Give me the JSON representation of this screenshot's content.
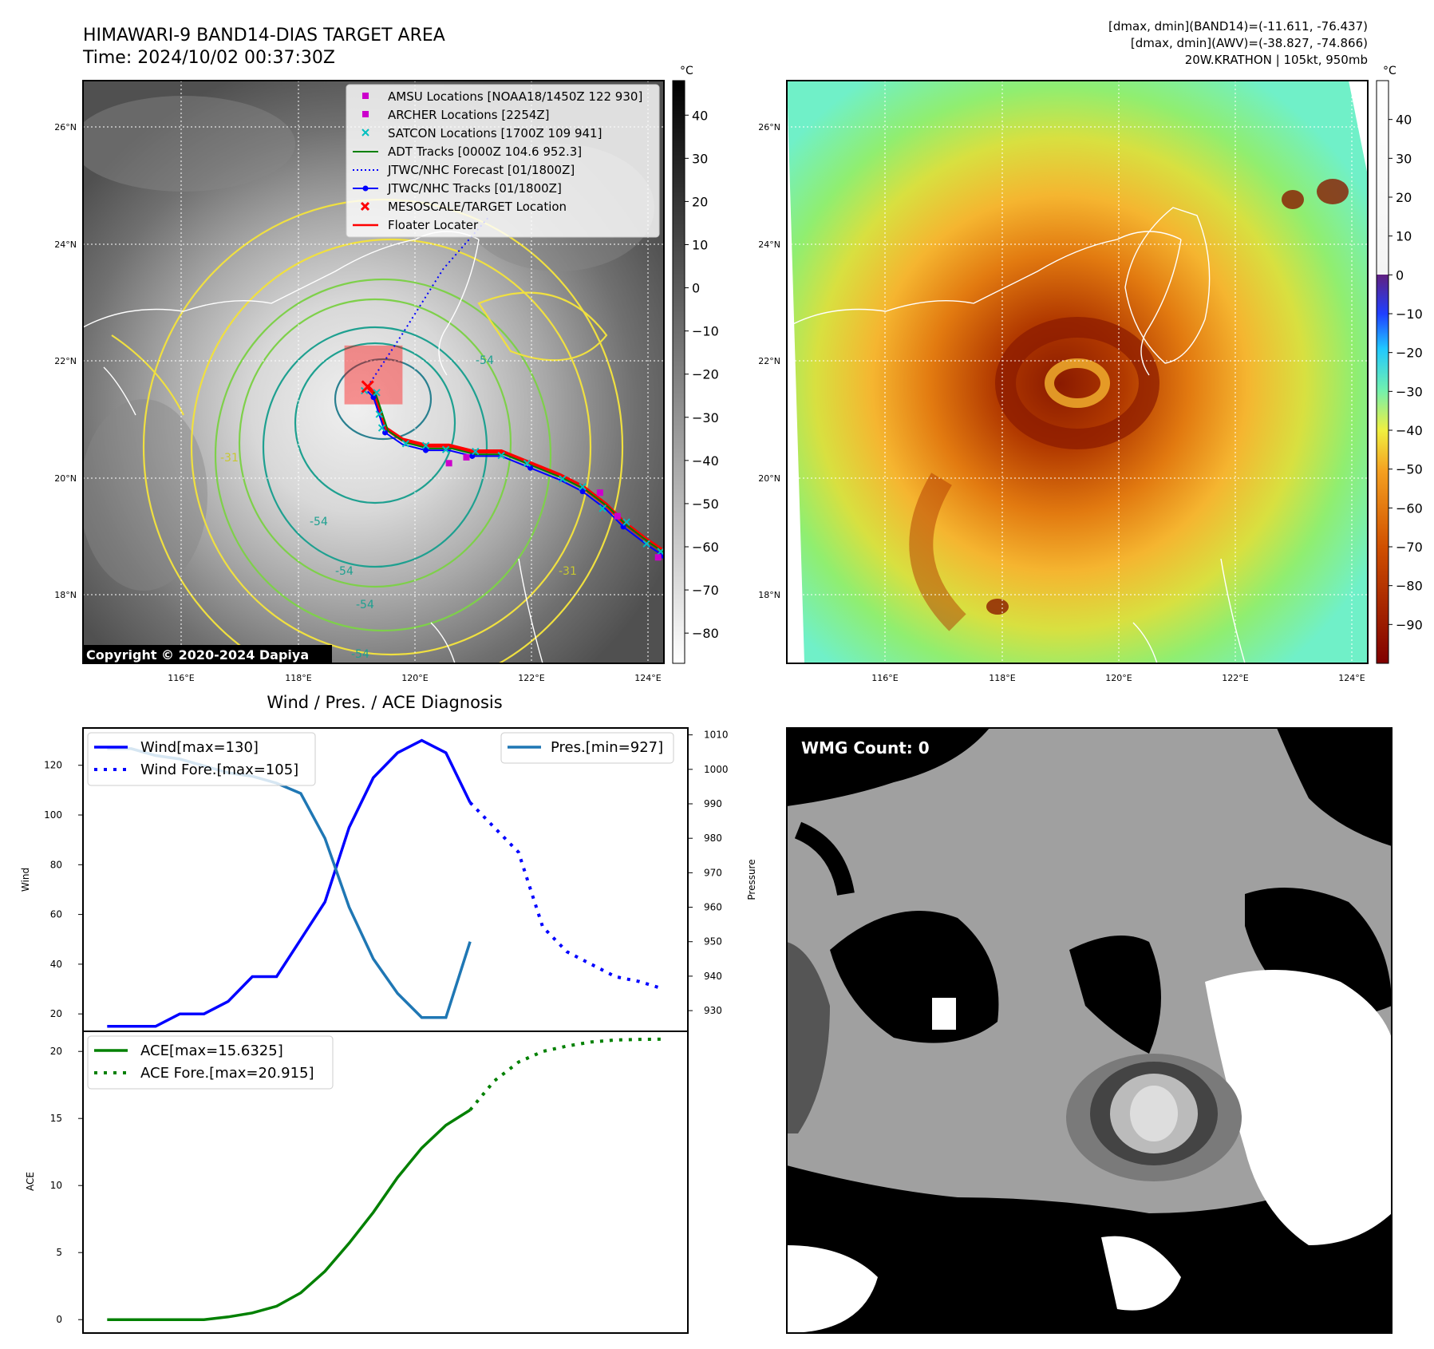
{
  "header": {
    "title_line1": "HIMAWARI-9 BAND14-DIAS TARGET AREA",
    "title_line2": "Time: 2024/10/02 00:37:30Z",
    "stats_line1": "[dmax, dmin](BAND14)=(-11.611, -76.437)",
    "stats_line2": "[dmax, dmin](AWV)=(-38.827, -74.866)",
    "stats_line3": "20W.KRATHON | 105kt, 950mb"
  },
  "copyright": "Copyright © 2020-2024 Dapiya",
  "map": {
    "lat_labels": [
      "26°N",
      "24°N",
      "22°N",
      "20°N",
      "18°N"
    ],
    "lat_values": [
      26,
      24,
      22,
      20,
      18
    ],
    "lon_labels": [
      "116°E",
      "118°E",
      "120°E",
      "122°E",
      "124°E"
    ],
    "lon_values": [
      116,
      118,
      120,
      122,
      124
    ],
    "lon_range": [
      114.3,
      124.3
    ],
    "lat_range": [
      16.9,
      26.8
    ],
    "contour_labels": [
      "-54",
      "-54",
      "-54",
      "-54",
      "-31",
      "-31",
      "-54"
    ],
    "legend": [
      {
        "label": "AMSU Locations [NOAA18/1450Z 122 930]",
        "marker": "square",
        "color": "#cc00cc"
      },
      {
        "label": "ARCHER Locations [2254Z]",
        "marker": "square",
        "color": "#cc00cc"
      },
      {
        "label": "SATCON Locations [1700Z 109 941]",
        "marker": "x",
        "color": "#00bfbf"
      },
      {
        "label": "ADT Tracks [0000Z 104.6 952.3]",
        "marker": "line",
        "color": "#008000"
      },
      {
        "label": "JTWC/NHC Forecast [01/1800Z]",
        "marker": "dotted",
        "color": "#0000ff"
      },
      {
        "label": "JTWC/NHC Tracks [01/1800Z]",
        "marker": "line-dot",
        "color": "#0000ff"
      },
      {
        "label": "MESOSCALE/TARGET Location",
        "marker": "x",
        "color": "#ff0000"
      },
      {
        "label": "Floater Locater",
        "marker": "line",
        "color": "#ff0000"
      }
    ],
    "track_points": [
      [
        124.3,
        18.8
      ],
      [
        124.0,
        19.0
      ],
      [
        123.6,
        19.3
      ],
      [
        123.3,
        19.6
      ],
      [
        122.9,
        19.9
      ],
      [
        122.5,
        20.1
      ],
      [
        122.0,
        20.3
      ],
      [
        121.5,
        20.5
      ],
      [
        121.0,
        20.5
      ],
      [
        120.6,
        20.6
      ],
      [
        120.2,
        20.6
      ],
      [
        119.8,
        20.7
      ],
      [
        119.5,
        20.9
      ],
      [
        119.4,
        21.2
      ],
      [
        119.3,
        21.5
      ],
      [
        119.2,
        21.6
      ]
    ],
    "forecast_points": [
      [
        119.2,
        21.6
      ],
      [
        119.8,
        22.5
      ],
      [
        120.5,
        23.6
      ],
      [
        121.3,
        24.5
      ]
    ],
    "target_box": {
      "lon": [
        118.8,
        119.8
      ],
      "lat": [
        21.3,
        22.3
      ]
    },
    "target_center": [
      119.2,
      21.6
    ]
  },
  "colorbar_band14": {
    "unit": "°C",
    "ticks": [
      "40",
      "30",
      "20",
      "10",
      "0",
      "−10",
      "−20",
      "−30",
      "−40",
      "−50",
      "−60",
      "−70",
      "−80"
    ],
    "tick_values": [
      40,
      30,
      20,
      10,
      0,
      -10,
      -20,
      -30,
      -40,
      -50,
      -60,
      -70,
      -80
    ],
    "range": [
      -87,
      48
    ]
  },
  "colorbar_awv": {
    "unit": "°C",
    "ticks": [
      "40",
      "30",
      "20",
      "10",
      "0",
      "−10",
      "−20",
      "−30",
      "−40",
      "−50",
      "−60",
      "−70",
      "−80",
      "−90"
    ],
    "tick_values": [
      40,
      30,
      20,
      10,
      0,
      -10,
      -20,
      -30,
      -40,
      -50,
      -60,
      -70,
      -80,
      -90
    ],
    "range": [
      -100,
      50
    ]
  },
  "chart_data": [
    {
      "type": "line",
      "title": "Wind / Pres. / ACE Diagnosis",
      "ylabel": "Wind",
      "y2label": "Pressure",
      "ylim": [
        13,
        135
      ],
      "y2lim": [
        924,
        1012
      ],
      "yticks": [
        20,
        40,
        60,
        80,
        100,
        120
      ],
      "y2ticks": [
        930,
        940,
        950,
        960,
        970,
        980,
        990,
        1000,
        1010
      ],
      "xlim": [
        -1,
        24
      ],
      "series": [
        {
          "name": "Wind[max=130]",
          "axis": "left",
          "style": "solid",
          "color": "#0000ff",
          "x": [
            0,
            1,
            2,
            3,
            4,
            5,
            6,
            7,
            8,
            9,
            10,
            11,
            12,
            13,
            14,
            15
          ],
          "values": [
            15,
            15,
            15,
            20,
            20,
            25,
            35,
            35,
            50,
            65,
            95,
            115,
            125,
            130,
            125,
            105
          ]
        },
        {
          "name": "Wind Fore.[max=105]",
          "axis": "left",
          "style": "dotted",
          "color": "#0000ff",
          "x": [
            15,
            16,
            17,
            17.5,
            18,
            19,
            20,
            21,
            22,
            23
          ],
          "values": [
            105,
            95,
            85,
            70,
            55,
            45,
            40,
            35,
            33,
            30
          ]
        },
        {
          "name": "Pres.[min=927]",
          "axis": "right",
          "style": "solid",
          "color": "#1f77b4",
          "x": [
            0,
            1,
            2,
            3,
            4,
            5,
            6,
            7,
            8,
            9,
            10,
            11,
            12,
            13,
            14,
            15
          ],
          "values": [
            1006,
            1006,
            1004,
            1003,
            1001,
            999,
            998,
            996,
            993,
            980,
            960,
            945,
            935,
            928,
            928,
            950
          ]
        }
      ]
    },
    {
      "type": "line",
      "ylabel": "ACE",
      "ylim": [
        -1,
        21.5
      ],
      "yticks": [
        0,
        5,
        10,
        15,
        20
      ],
      "xlim": [
        -1,
        24
      ],
      "series": [
        {
          "name": "ACE[max=15.6325]",
          "axis": "left",
          "style": "solid",
          "color": "#008000",
          "x": [
            0,
            1,
            2,
            3,
            4,
            5,
            6,
            7,
            8,
            9,
            10,
            11,
            12,
            13,
            14,
            15
          ],
          "values": [
            0,
            0,
            0,
            0,
            0,
            0.2,
            0.5,
            1.0,
            2.0,
            3.6,
            5.7,
            8.0,
            10.6,
            12.8,
            14.5,
            15.63
          ]
        },
        {
          "name": "ACE Fore.[max=20.915]",
          "axis": "left",
          "style": "dotted",
          "color": "#008000",
          "x": [
            15,
            16,
            17,
            18,
            19,
            20,
            21,
            22,
            23
          ],
          "values": [
            15.63,
            17.8,
            19.2,
            20.0,
            20.4,
            20.7,
            20.85,
            20.9,
            20.915
          ]
        }
      ]
    }
  ],
  "wmg": {
    "label": "WMG Count: 0"
  }
}
